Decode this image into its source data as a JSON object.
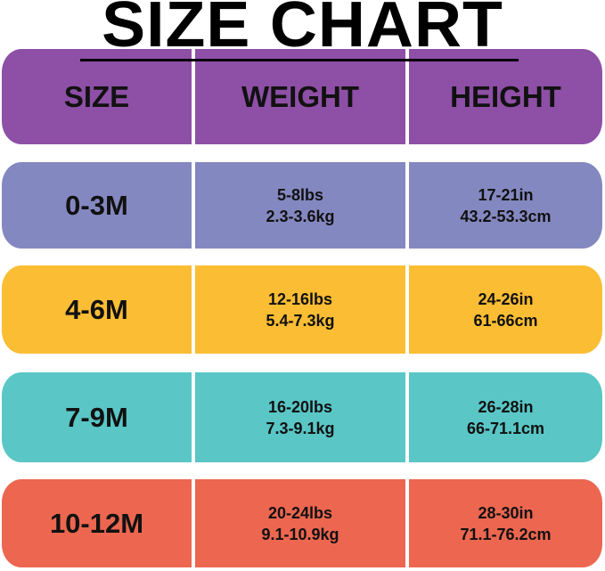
{
  "title": "SIZE CHART",
  "headers": [
    "SIZE",
    "WEIGHT",
    "HEIGHT"
  ],
  "colors": {
    "header": "#8e4fa6",
    "rows": [
      "#8488c0",
      "#fbbd33",
      "#5ac6c6",
      "#ec6650"
    ]
  },
  "rows": [
    {
      "size": "0-3M",
      "weight_lbs": "5-8lbs",
      "weight_kg": "2.3-3.6kg",
      "height_in": "17-21in",
      "height_cm": "43.2-53.3cm"
    },
    {
      "size": "4-6M",
      "weight_lbs": "12-16lbs",
      "weight_kg": "5.4-7.3kg",
      "height_in": "24-26in",
      "height_cm": "61-66cm"
    },
    {
      "size": "7-9M",
      "weight_lbs": "16-20lbs",
      "weight_kg": "7.3-9.1kg",
      "height_in": "26-28in",
      "height_cm": "66-71.1cm"
    },
    {
      "size": "10-12M",
      "weight_lbs": "20-24lbs",
      "weight_kg": "9.1-10.9kg",
      "height_in": "28-30in",
      "height_cm": "71.1-76.2cm"
    }
  ]
}
